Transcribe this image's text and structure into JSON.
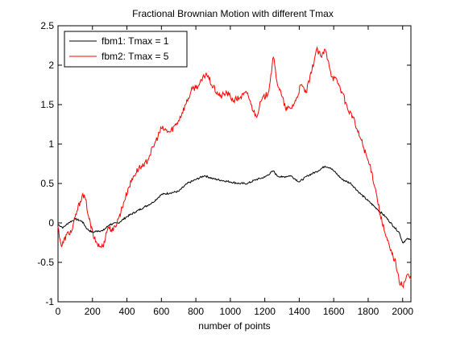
{
  "chart_data": {
    "type": "line",
    "title": "Fractional Brownian Motion with different Tmax",
    "xlabel": "number of points",
    "ylabel": "",
    "xlim": [
      0,
      2048
    ],
    "ylim": [
      -1,
      2.5
    ],
    "xticks": [
      0,
      200,
      400,
      600,
      800,
      1000,
      1200,
      1400,
      1600,
      1800,
      2000
    ],
    "xtick_labels": [
      "0",
      "200",
      "400",
      "600",
      "800",
      "1000",
      "1200",
      "1400",
      "1600",
      "1800",
      "2000"
    ],
    "yticks": [
      -1,
      -0.5,
      0,
      0.5,
      1,
      1.5,
      2,
      2.5
    ],
    "ytick_labels": [
      "-1",
      "-0.5",
      "0",
      "0.5",
      "1",
      "1.5",
      "2",
      "2.5"
    ],
    "grid": false,
    "legend_position": "top-left",
    "series": [
      {
        "name": "fbm1: Tmax = 1",
        "color": "#000000",
        "x": [
          0,
          30,
          60,
          100,
          140,
          170,
          200,
          230,
          260,
          300,
          350,
          400,
          450,
          500,
          550,
          600,
          650,
          700,
          750,
          800,
          850,
          900,
          950,
          1000,
          1050,
          1100,
          1150,
          1200,
          1250,
          1270,
          1300,
          1350,
          1400,
          1450,
          1500,
          1550,
          1580,
          1600,
          1650,
          1700,
          1750,
          1800,
          1850,
          1900,
          1950,
          1980,
          2000,
          2030,
          2048
        ],
        "y": [
          -0.02,
          -0.06,
          0.0,
          0.05,
          0.02,
          -0.08,
          -0.12,
          -0.1,
          -0.1,
          -0.02,
          0.0,
          0.08,
          0.14,
          0.2,
          0.26,
          0.36,
          0.38,
          0.4,
          0.5,
          0.55,
          0.6,
          0.56,
          0.54,
          0.52,
          0.5,
          0.5,
          0.55,
          0.58,
          0.66,
          0.6,
          0.58,
          0.6,
          0.52,
          0.6,
          0.65,
          0.72,
          0.7,
          0.66,
          0.55,
          0.5,
          0.38,
          0.28,
          0.18,
          0.08,
          -0.05,
          -0.12,
          -0.25,
          -0.2,
          -0.22
        ]
      },
      {
        "name": "fbm2: Tmax = 5",
        "color": "#ff0000",
        "x": [
          0,
          20,
          50,
          80,
          110,
          140,
          160,
          180,
          210,
          240,
          260,
          290,
          320,
          350,
          380,
          410,
          440,
          470,
          500,
          530,
          560,
          600,
          650,
          700,
          740,
          780,
          820,
          860,
          900,
          940,
          980,
          1020,
          1060,
          1100,
          1120,
          1150,
          1180,
          1220,
          1250,
          1270,
          1300,
          1320,
          1350,
          1380,
          1410,
          1440,
          1470,
          1500,
          1530,
          1550,
          1570,
          1590,
          1620,
          1650,
          1680,
          1710,
          1740,
          1760,
          1790,
          1820,
          1850,
          1870,
          1900,
          1930,
          1960,
          1980,
          2000,
          2030,
          2048
        ],
        "y": [
          -0.05,
          -0.3,
          -0.15,
          -0.1,
          0.15,
          0.35,
          0.3,
          0.05,
          -0.2,
          -0.3,
          -0.3,
          -0.05,
          -0.1,
          0.05,
          0.25,
          0.45,
          0.6,
          0.7,
          0.72,
          0.85,
          1.0,
          1.2,
          1.15,
          1.3,
          1.5,
          1.7,
          1.75,
          1.9,
          1.72,
          1.6,
          1.65,
          1.55,
          1.6,
          1.65,
          1.5,
          1.35,
          1.55,
          1.65,
          2.1,
          1.8,
          1.6,
          1.45,
          1.45,
          1.55,
          1.75,
          1.65,
          1.9,
          2.2,
          2.1,
          2.2,
          2.05,
          1.85,
          1.8,
          1.65,
          1.45,
          1.35,
          1.15,
          1.05,
          0.85,
          0.65,
          0.35,
          0.1,
          -0.15,
          -0.35,
          -0.5,
          -0.75,
          -0.8,
          -0.65,
          -0.72
        ]
      }
    ]
  }
}
